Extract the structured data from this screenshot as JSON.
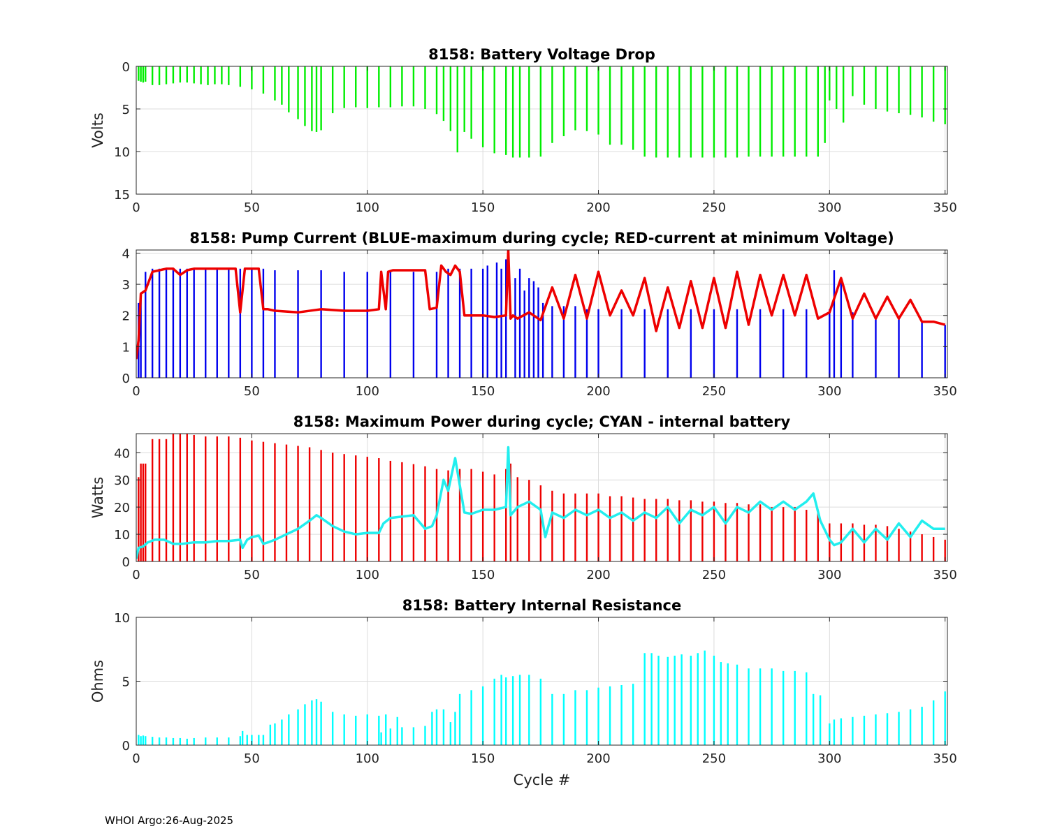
{
  "footer": "WHOI Argo:26-Aug-2025",
  "chart_data": [
    {
      "type": "bar",
      "title": "8158: Battery Voltage Drop",
      "ylabel": "Volts",
      "xlabel": "",
      "xlim": [
        0,
        351
      ],
      "ylim": [
        0,
        15
      ],
      "y_reversed": true,
      "xticks": [
        "0",
        "50",
        "100",
        "150",
        "200",
        "250",
        "300",
        "350"
      ],
      "yticks": [
        "0",
        "5",
        "10",
        "15"
      ],
      "grid": true,
      "bar_color": "#00ee00",
      "x": [
        1,
        2,
        3,
        4,
        7,
        10,
        13,
        16,
        19,
        22,
        25,
        28,
        31,
        34,
        37,
        40,
        45,
        50,
        55,
        60,
        63,
        66,
        70,
        73,
        76,
        78,
        80,
        85,
        90,
        95,
        100,
        105,
        110,
        115,
        120,
        125,
        130,
        133,
        136,
        139,
        142,
        145,
        150,
        155,
        160,
        163,
        166,
        170,
        175,
        180,
        185,
        190,
        195,
        200,
        205,
        210,
        215,
        220,
        225,
        230,
        235,
        240,
        245,
        250,
        255,
        260,
        265,
        270,
        275,
        280,
        285,
        290,
        295,
        298,
        300,
        303,
        306,
        310,
        315,
        320,
        325,
        330,
        335,
        340,
        345,
        350
      ],
      "values": [
        1.7,
        1.8,
        1.9,
        1.8,
        2.2,
        2.2,
        2.1,
        2.0,
        1.9,
        1.9,
        2.0,
        2.1,
        2.2,
        2.1,
        2.1,
        2.2,
        2.4,
        2.7,
        3.2,
        4.0,
        4.5,
        5.4,
        6.2,
        7.0,
        7.6,
        7.7,
        7.5,
        5.5,
        4.9,
        4.8,
        4.9,
        4.8,
        4.8,
        4.7,
        4.7,
        5.0,
        5.6,
        6.4,
        7.6,
        10.1,
        7.7,
        8.5,
        9.5,
        10.2,
        10.4,
        10.7,
        10.7,
        10.7,
        10.6,
        9.0,
        8.2,
        7.5,
        7.6,
        8.0,
        9.2,
        9.2,
        9.8,
        10.6,
        10.7,
        10.7,
        10.7,
        10.7,
        10.7,
        10.7,
        10.7,
        10.7,
        10.6,
        10.6,
        10.6,
        10.6,
        10.6,
        10.6,
        10.6,
        9.0,
        4.0,
        5.0,
        6.6,
        3.5,
        4.5,
        5.0,
        5.3,
        5.5,
        5.7,
        6.0,
        6.5,
        6.8
      ]
    },
    {
      "type": "bar",
      "title": "8158: Pump Current (BLUE-maximum during cycle; RED-current at minimum Voltage)",
      "ylabel": "",
      "xlabel": "",
      "xlim": [
        0,
        351
      ],
      "ylim": [
        0,
        4.1
      ],
      "xticks": [
        "0",
        "50",
        "100",
        "150",
        "200",
        "250",
        "300",
        "350"
      ],
      "yticks": [
        "0",
        "1",
        "2",
        "3",
        "4"
      ],
      "grid": true,
      "series": [
        {
          "name": "maximum during cycle",
          "style": "bar",
          "color": "#0000ee",
          "x": [
            1,
            2,
            4,
            7,
            10,
            13,
            16,
            19,
            22,
            25,
            30,
            35,
            40,
            45,
            50,
            55,
            60,
            70,
            80,
            90,
            100,
            110,
            120,
            130,
            135,
            140,
            145,
            150,
            152,
            156,
            158,
            160,
            164,
            166,
            168,
            170,
            172,
            174,
            176,
            180,
            185,
            190,
            195,
            200,
            210,
            220,
            230,
            240,
            250,
            260,
            270,
            280,
            290,
            300,
            302,
            305,
            310,
            320,
            330,
            340,
            350
          ],
          "values": [
            2.4,
            2.7,
            3.4,
            3.5,
            3.5,
            3.5,
            3.5,
            3.5,
            3.5,
            3.5,
            3.5,
            3.5,
            3.5,
            3.5,
            3.5,
            3.5,
            3.45,
            3.45,
            3.45,
            3.4,
            3.4,
            3.4,
            3.4,
            3.4,
            3.5,
            3.5,
            3.5,
            3.5,
            3.6,
            3.7,
            3.5,
            3.8,
            3.2,
            3.5,
            2.8,
            3.2,
            3.1,
            2.9,
            2.4,
            2.3,
            2.3,
            2.3,
            2.2,
            2.2,
            2.2,
            2.2,
            2.2,
            2.2,
            2.2,
            2.2,
            2.2,
            2.2,
            2.2,
            2.2,
            3.45,
            3.2,
            2.1,
            2.0,
            1.9,
            1.8,
            1.7
          ]
        },
        {
          "name": "current at minimum Voltage",
          "style": "line",
          "color": "#ee0000",
          "x": [
            0,
            1,
            2,
            4,
            7,
            10,
            13,
            16,
            19,
            22,
            25,
            30,
            35,
            40,
            43,
            45,
            47,
            50,
            53,
            55,
            57,
            60,
            70,
            80,
            90,
            100,
            105,
            106,
            108,
            109,
            111,
            113,
            120,
            125,
            127,
            130,
            132,
            134,
            136,
            138,
            140,
            142,
            145,
            150,
            155,
            160,
            161,
            162,
            163,
            165,
            170,
            175,
            180,
            185,
            190,
            195,
            200,
            205,
            210,
            215,
            220,
            225,
            230,
            235,
            240,
            245,
            250,
            255,
            260,
            265,
            270,
            275,
            280,
            285,
            290,
            295,
            300,
            305,
            310,
            315,
            320,
            325,
            330,
            335,
            340,
            345,
            350
          ],
          "values": [
            0.6,
            1.2,
            2.7,
            2.8,
            3.4,
            3.45,
            3.5,
            3.5,
            3.3,
            3.45,
            3.5,
            3.5,
            3.5,
            3.5,
            3.5,
            2.1,
            3.5,
            3.5,
            3.5,
            2.2,
            2.2,
            2.15,
            2.1,
            2.2,
            2.15,
            2.15,
            2.2,
            3.4,
            2.2,
            3.4,
            3.45,
            3.45,
            3.45,
            3.45,
            2.2,
            2.25,
            3.6,
            3.4,
            3.3,
            3.6,
            3.4,
            2.0,
            2.0,
            2.0,
            1.95,
            2.0,
            4.1,
            1.9,
            2.0,
            1.9,
            2.1,
            1.85,
            2.9,
            1.9,
            3.3,
            1.9,
            3.4,
            2.0,
            2.8,
            2.0,
            3.2,
            1.5,
            2.9,
            1.6,
            3.1,
            1.6,
            3.2,
            1.6,
            3.4,
            1.7,
            3.3,
            2.0,
            3.3,
            2.0,
            3.3,
            1.9,
            2.1,
            3.2,
            1.9,
            2.7,
            1.9,
            2.6,
            1.9,
            2.5,
            1.8,
            1.8,
            1.7
          ]
        }
      ]
    },
    {
      "type": "bar",
      "title": "8158: Maximum Power during cycle; CYAN - internal battery",
      "ylabel": "Watts",
      "xlabel": "",
      "xlim": [
        0,
        351
      ],
      "ylim": [
        0,
        47
      ],
      "xticks": [
        "0",
        "50",
        "100",
        "150",
        "200",
        "250",
        "300",
        "350"
      ],
      "yticks": [
        "0",
        "10",
        "20",
        "30",
        "40"
      ],
      "grid": true,
      "series": [
        {
          "name": "Maximum Power during cycle",
          "style": "bar",
          "color": "#ee0000",
          "x": [
            1,
            2,
            3,
            4,
            7,
            10,
            13,
            16,
            19,
            22,
            25,
            30,
            35,
            40,
            45,
            50,
            55,
            60,
            65,
            70,
            75,
            80,
            85,
            90,
            95,
            100,
            105,
            110,
            115,
            120,
            125,
            130,
            135,
            140,
            145,
            150,
            155,
            160,
            162,
            165,
            170,
            175,
            180,
            185,
            190,
            195,
            200,
            205,
            210,
            215,
            220,
            225,
            230,
            235,
            240,
            245,
            250,
            255,
            260,
            265,
            270,
            275,
            280,
            285,
            290,
            295,
            300,
            305,
            310,
            315,
            320,
            325,
            330,
            335,
            340,
            345,
            350
          ],
          "values": [
            31,
            36,
            36,
            36,
            45,
            45,
            45,
            47,
            47,
            47,
            46.5,
            46,
            46,
            46,
            45.5,
            44.5,
            44,
            43.5,
            43,
            42.5,
            42,
            41,
            40,
            39.5,
            39,
            38.5,
            38,
            37,
            36.5,
            35.8,
            35,
            34,
            33.5,
            34,
            34,
            33,
            32,
            34,
            36,
            31,
            30,
            28,
            26,
            25,
            25,
            25,
            25,
            24,
            24,
            23.5,
            23,
            23,
            23,
            22.5,
            22.5,
            22,
            22,
            21.5,
            21.5,
            21,
            21,
            20,
            20,
            20,
            19,
            18,
            14,
            14,
            14,
            13.5,
            13.5,
            13,
            12,
            11,
            10,
            9,
            8
          ]
        },
        {
          "name": "internal battery",
          "style": "line",
          "color": "#22eeee",
          "x": [
            0,
            1,
            3,
            5,
            8,
            12,
            16,
            20,
            25,
            30,
            35,
            40,
            45,
            46,
            48,
            50,
            53,
            55,
            57,
            60,
            65,
            70,
            75,
            78,
            80,
            85,
            90,
            95,
            100,
            105,
            107,
            110,
            115,
            120,
            125,
            128,
            130,
            133,
            135,
            138,
            140,
            142,
            145,
            150,
            155,
            160,
            161,
            162,
            165,
            170,
            175,
            177,
            180,
            185,
            190,
            195,
            200,
            205,
            210,
            215,
            220,
            225,
            230,
            235,
            240,
            245,
            250,
            255,
            260,
            265,
            270,
            275,
            280,
            285,
            290,
            293,
            296,
            300,
            302,
            305,
            310,
            315,
            320,
            325,
            330,
            335,
            340,
            345,
            350
          ],
          "values": [
            1,
            5,
            5.5,
            7,
            8,
            8,
            6.5,
            6.5,
            7,
            7,
            7.5,
            7.5,
            8,
            5,
            8,
            9,
            9.5,
            6.5,
            7,
            8,
            10,
            12,
            15,
            17,
            16,
            13,
            11,
            10,
            10.5,
            10.5,
            14,
            16,
            16.5,
            17,
            12,
            13,
            17,
            30,
            26,
            38,
            28,
            18,
            17.5,
            19,
            19,
            20,
            42,
            17,
            20,
            22,
            19,
            9,
            18,
            16,
            19,
            17,
            19,
            16,
            18,
            15,
            18,
            16,
            20,
            14,
            19,
            17,
            20,
            14,
            20,
            18,
            22,
            19,
            22,
            19,
            22,
            25,
            15,
            8,
            6,
            7,
            12,
            7,
            12,
            8,
            14,
            9,
            15,
            12,
            12
          ]
        }
      ]
    },
    {
      "type": "bar",
      "title": "8158: Battery Internal Resistance",
      "ylabel": "Ohms",
      "xlabel": "Cycle #",
      "xlim": [
        0,
        351
      ],
      "ylim": [
        0,
        10
      ],
      "xticks": [
        "0",
        "50",
        "100",
        "150",
        "200",
        "250",
        "300",
        "350"
      ],
      "yticks": [
        "0",
        "5",
        "10"
      ],
      "grid": true,
      "bar_color": "#00ffff",
      "x": [
        1,
        2,
        3,
        4,
        7,
        10,
        13,
        16,
        19,
        22,
        25,
        30,
        35,
        40,
        45,
        46,
        48,
        50,
        53,
        55,
        58,
        60,
        63,
        66,
        70,
        73,
        76,
        78,
        80,
        85,
        90,
        95,
        100,
        105,
        106,
        108,
        110,
        113,
        115,
        120,
        125,
        128,
        130,
        133,
        136,
        138,
        140,
        145,
        150,
        155,
        158,
        160,
        163,
        166,
        170,
        175,
        180,
        185,
        190,
        195,
        200,
        205,
        210,
        215,
        220,
        223,
        226,
        230,
        233,
        236,
        240,
        243,
        246,
        250,
        253,
        256,
        260,
        265,
        270,
        275,
        280,
        285,
        290,
        293,
        296,
        300,
        302,
        305,
        310,
        315,
        320,
        325,
        330,
        335,
        340,
        345,
        350
      ],
      "values": [
        0.8,
        0.7,
        0.75,
        0.7,
        0.65,
        0.6,
        0.6,
        0.55,
        0.55,
        0.5,
        0.55,
        0.6,
        0.6,
        0.6,
        0.7,
        1.1,
        0.8,
        0.8,
        0.8,
        0.8,
        1.6,
        1.7,
        2.0,
        2.4,
        2.8,
        3.2,
        3.5,
        3.6,
        3.4,
        2.6,
        2.4,
        2.3,
        2.4,
        2.3,
        1.0,
        2.4,
        1.3,
        2.2,
        1.4,
        1.4,
        1.5,
        2.6,
        2.8,
        2.8,
        1.8,
        2.6,
        4.0,
        4.3,
        4.6,
        5.2,
        5.5,
        5.3,
        5.4,
        5.5,
        5.5,
        5.2,
        4.0,
        4.0,
        4.3,
        4.3,
        4.5,
        4.6,
        4.7,
        4.8,
        7.2,
        7.2,
        7.0,
        6.9,
        7.0,
        7.1,
        7.0,
        7.2,
        7.4,
        7.0,
        6.5,
        6.4,
        6.3,
        6.0,
        6.0,
        6.0,
        5.8,
        5.8,
        5.7,
        4.0,
        3.9,
        1.7,
        2.0,
        2.1,
        2.2,
        2.3,
        2.4,
        2.5,
        2.6,
        2.8,
        3.0,
        3.5,
        4.2
      ]
    }
  ]
}
